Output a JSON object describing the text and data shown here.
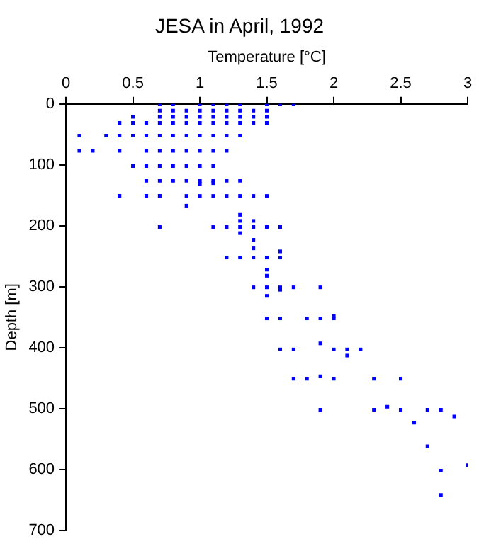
{
  "chart_data": {
    "type": "scatter",
    "title": "JESA in April, 1992",
    "xlabel": "Temperature [°C]",
    "ylabel": "Depth [m]",
    "xlim": [
      0,
      3
    ],
    "xticks": [
      0,
      0.5,
      1,
      1.5,
      2,
      2.5,
      3
    ],
    "ylim": [
      700,
      0
    ],
    "yticks": [
      0,
      100,
      200,
      300,
      400,
      500,
      600,
      700
    ],
    "grid": false,
    "legend": false,
    "marker": "square",
    "series": [
      {
        "color": "#0000ff",
        "x": [
          0.7,
          0.8,
          1.0,
          1.1,
          1.2,
          1.3,
          1.5,
          1.6,
          1.7,
          0.7,
          0.8,
          0.9,
          1.0,
          1.1,
          1.2,
          1.3,
          1.4,
          1.5,
          0.5,
          0.7,
          0.8,
          0.9,
          1.0,
          1.1,
          1.2,
          1.3,
          1.4,
          1.5,
          0.4,
          0.5,
          0.6,
          0.7,
          0.8,
          0.9,
          1.0,
          1.1,
          1.2,
          1.3,
          1.4,
          1.5,
          0.1,
          0.3,
          0.4,
          0.5,
          0.6,
          0.7,
          0.8,
          0.9,
          1.0,
          1.1,
          1.2,
          1.3,
          0.1,
          0.2,
          0.4,
          0.6,
          0.7,
          0.8,
          0.9,
          1.0,
          1.1,
          1.2,
          0.5,
          0.6,
          0.7,
          0.8,
          0.9,
          1.0,
          1.1,
          0.6,
          0.7,
          0.8,
          0.9,
          1.0,
          1.1,
          1.2,
          1.3,
          1.0,
          1.1,
          0.4,
          0.6,
          0.7,
          0.9,
          1.0,
          1.1,
          1.2,
          1.3,
          1.4,
          1.5,
          0.9,
          1.3,
          1.3,
          1.4,
          0.7,
          1.1,
          1.2,
          1.3,
          1.4,
          1.5,
          1.6,
          1.3,
          1.4,
          1.4,
          1.6,
          1.2,
          1.3,
          1.4,
          1.5,
          1.6,
          1.5,
          1.5,
          1.4,
          1.5,
          1.6,
          1.7,
          1.9,
          1.6,
          1.5,
          1.5,
          1.6,
          1.8,
          1.9,
          2.0,
          2.0,
          1.9,
          1.6,
          1.7,
          2.0,
          2.1,
          2.2,
          2.1,
          1.9,
          1.7,
          1.8,
          2.0,
          2.3,
          2.5,
          1.9,
          2.3,
          2.5,
          2.7,
          2.8,
          2.4,
          2.9,
          2.6,
          2.7,
          3.0,
          2.8,
          2.8
        ],
        "values": [
          0,
          0,
          0,
          0,
          0,
          0,
          0,
          0,
          0,
          11,
          11,
          11,
          11,
          11,
          11,
          11,
          11,
          11,
          21,
          21,
          21,
          21,
          21,
          21,
          21,
          21,
          21,
          21,
          31,
          31,
          31,
          31,
          31,
          31,
          31,
          31,
          31,
          31,
          31,
          31,
          52,
          52,
          52,
          52,
          52,
          52,
          52,
          52,
          52,
          52,
          52,
          52,
          77,
          77,
          77,
          77,
          77,
          77,
          77,
          77,
          77,
          77,
          102,
          102,
          102,
          102,
          102,
          102,
          102,
          126,
          126,
          126,
          126,
          126,
          126,
          126,
          126,
          131,
          130,
          151,
          151,
          151,
          151,
          151,
          151,
          151,
          151,
          151,
          151,
          167,
          182,
          192,
          192,
          202,
          202,
          202,
          202,
          202,
          202,
          202,
          212,
          223,
          237,
          242,
          252,
          252,
          252,
          252,
          252,
          272,
          282,
          301,
          301,
          301,
          301,
          301,
          305,
          315,
          352,
          352,
          352,
          352,
          352,
          348,
          393,
          403,
          403,
          403,
          403,
          403,
          413,
          447,
          451,
          451,
          451,
          451,
          451,
          502,
          502,
          502,
          502,
          502,
          497,
          513,
          523,
          562,
          593,
          602,
          642
        ]
      }
    ]
  }
}
